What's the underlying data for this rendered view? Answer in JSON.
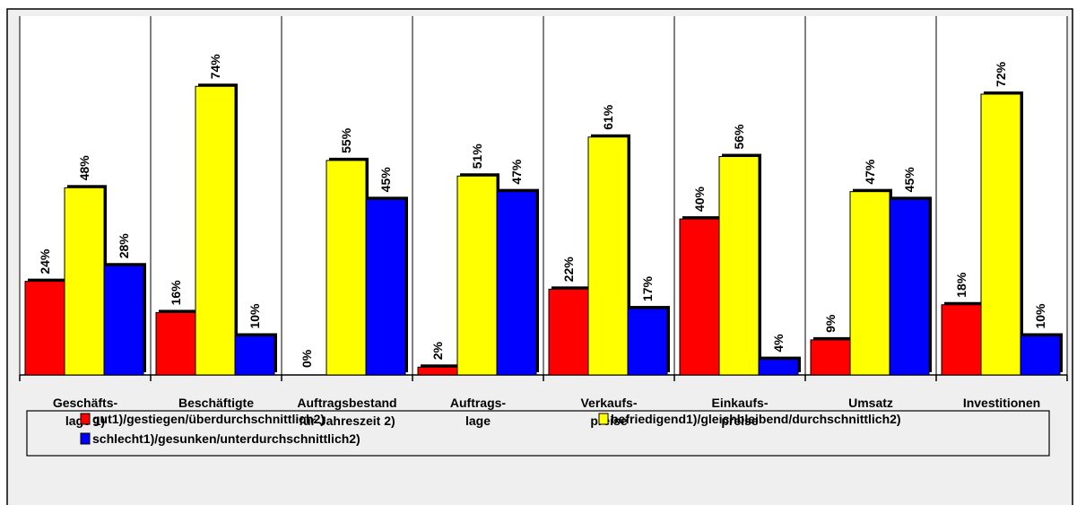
{
  "chart_data": {
    "type": "bar",
    "categories": [
      "Geschäfts-\nlage 1)",
      "Beschäftigte",
      "Auftragsbestand\nfür Jahreszeit 2)",
      "Auftrags-\nlage",
      "Verkaufs-\npreise",
      "Einkaufs-\npreise",
      "Umsatz",
      "Investitionen"
    ],
    "series": [
      {
        "name": "gut1)/gestiegen/überdurchschnittlich2)",
        "color": "#ff0000",
        "values": [
          24,
          16,
          0,
          2,
          22,
          40,
          9,
          18
        ],
        "value_labels": [
          "24%",
          "16%",
          "0%",
          "2%",
          "22%",
          "40%",
          "9%",
          "18%"
        ]
      },
      {
        "name": "befriedigend1)/gleichbleibend/durchschnittlich2)",
        "color": "#ffff00",
        "values": [
          48,
          74,
          55,
          51,
          61,
          56,
          47,
          72
        ],
        "value_labels": [
          "48%",
          "74%",
          "55%",
          "51%",
          "61%",
          "56%",
          "47%",
          "72%"
        ]
      },
      {
        "name": "schlecht1)/gesunken/unterdurchschnittlich2)",
        "color": "#0000ff",
        "values": [
          28,
          10,
          45,
          47,
          17,
          4,
          45,
          10
        ],
        "value_labels": [
          "28%",
          "10%",
          "45%",
          "47%",
          "17%",
          "4%",
          "45%",
          "10%"
        ]
      }
    ],
    "ylim": [
      0,
      92
    ],
    "legend": "bottom"
  }
}
